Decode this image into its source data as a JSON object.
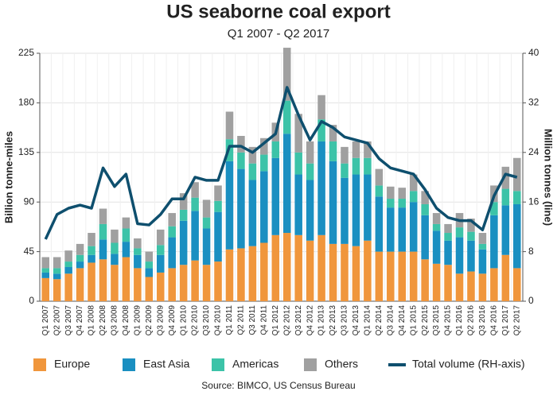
{
  "chart_data": {
    "type": "bar",
    "stacked": true,
    "title": "US seaborne coal export",
    "subtitle": "Q1 2007 - Q2 2017",
    "y_label": "Billion tonne-miles",
    "y2_label": "Million tonnes (line)",
    "source": "Source: BIMCO, US Census Bureau",
    "categories": [
      "Q1 2007",
      "Q2 2007",
      "Q3 2007",
      "Q4 2007",
      "Q1 2008",
      "Q2 2008",
      "Q3 2008",
      "Q4 2008",
      "Q1 2009",
      "Q2 2009",
      "Q3 2009",
      "Q4 2009",
      "Q1 2010",
      "Q2 2010",
      "Q3 2010",
      "Q4 2010",
      "Q1 2011",
      "Q2 2011",
      "Q3 2011",
      "Q4 2011",
      "Q1 2012",
      "Q2 2012",
      "Q3 2012",
      "Q4 2012",
      "Q1 2013",
      "Q2 2013",
      "Q3 2013",
      "Q4 2013",
      "Q1 2014",
      "Q2 2014",
      "Q3 2014",
      "Q4 2014",
      "Q1 2015",
      "Q2 2015",
      "Q3 2015",
      "Q4 2015",
      "Q1 2016",
      "Q2 2016",
      "Q3 2016",
      "Q4 2016",
      "Q1 2017",
      "Q2 2017"
    ],
    "series": [
      {
        "name": "Europe",
        "color": "#f0963c",
        "values": [
          21,
          20,
          25,
          30,
          35,
          38,
          33,
          40,
          30,
          22,
          26,
          30,
          33,
          37,
          33,
          36,
          47,
          48,
          50,
          53,
          60,
          62,
          60,
          55,
          60,
          52,
          52,
          50,
          55,
          45,
          45,
          45,
          45,
          38,
          34,
          33,
          25,
          27,
          25,
          30,
          42,
          30
        ]
      },
      {
        "name": "East Asia",
        "color": "#1a8fc1",
        "values": [
          5,
          5,
          6,
          6,
          7,
          18,
          10,
          14,
          12,
          8,
          16,
          28,
          40,
          45,
          33,
          45,
          80,
          72,
          60,
          65,
          70,
          90,
          55,
          55,
          85,
          75,
          60,
          65,
          60,
          50,
          40,
          40,
          45,
          40,
          30,
          22,
          33,
          28,
          22,
          48,
          45,
          58
        ]
      },
      {
        "name": "Americas",
        "color": "#3cc3a8",
        "values": [
          4,
          5,
          5,
          6,
          8,
          14,
          10,
          12,
          6,
          6,
          9,
          10,
          10,
          12,
          10,
          10,
          20,
          15,
          15,
          15,
          15,
          30,
          20,
          15,
          20,
          18,
          13,
          15,
          15,
          10,
          8,
          8,
          10,
          10,
          6,
          7,
          9,
          8,
          5,
          12,
          15,
          12
        ]
      },
      {
        "name": "Others",
        "color": "#a0a0a0",
        "values": [
          10,
          10,
          10,
          10,
          12,
          14,
          12,
          10,
          9,
          9,
          14,
          12,
          15,
          14,
          16,
          14,
          25,
          15,
          15,
          15,
          17,
          48,
          35,
          20,
          22,
          15,
          15,
          15,
          15,
          15,
          11,
          10,
          15,
          12,
          10,
          8,
          13,
          12,
          10,
          15,
          20,
          30
        ]
      },
      {
        "name": "Total volume (RH-axis)",
        "color": "#0e4f6e",
        "type": "line",
        "axis": "y2",
        "values": [
          10,
          14,
          15,
          15.5,
          15,
          21.5,
          18.5,
          20.5,
          12.5,
          12.3,
          14,
          16.5,
          16.5,
          20,
          19.5,
          19.5,
          25,
          25,
          24,
          25.5,
          27,
          34.5,
          30,
          26,
          29,
          28,
          26.5,
          26,
          25.5,
          23,
          21.5,
          21,
          20.5,
          18,
          15,
          13.5,
          13,
          13,
          11.5,
          17,
          20.5,
          20
        ]
      }
    ],
    "ylim": [
      0,
      225
    ],
    "yticks": [
      0,
      45,
      90,
      135,
      180,
      225
    ],
    "y2lim": [
      0,
      40
    ],
    "y2ticks": [
      0,
      8,
      16,
      24,
      32,
      40
    ],
    "grid": true
  }
}
